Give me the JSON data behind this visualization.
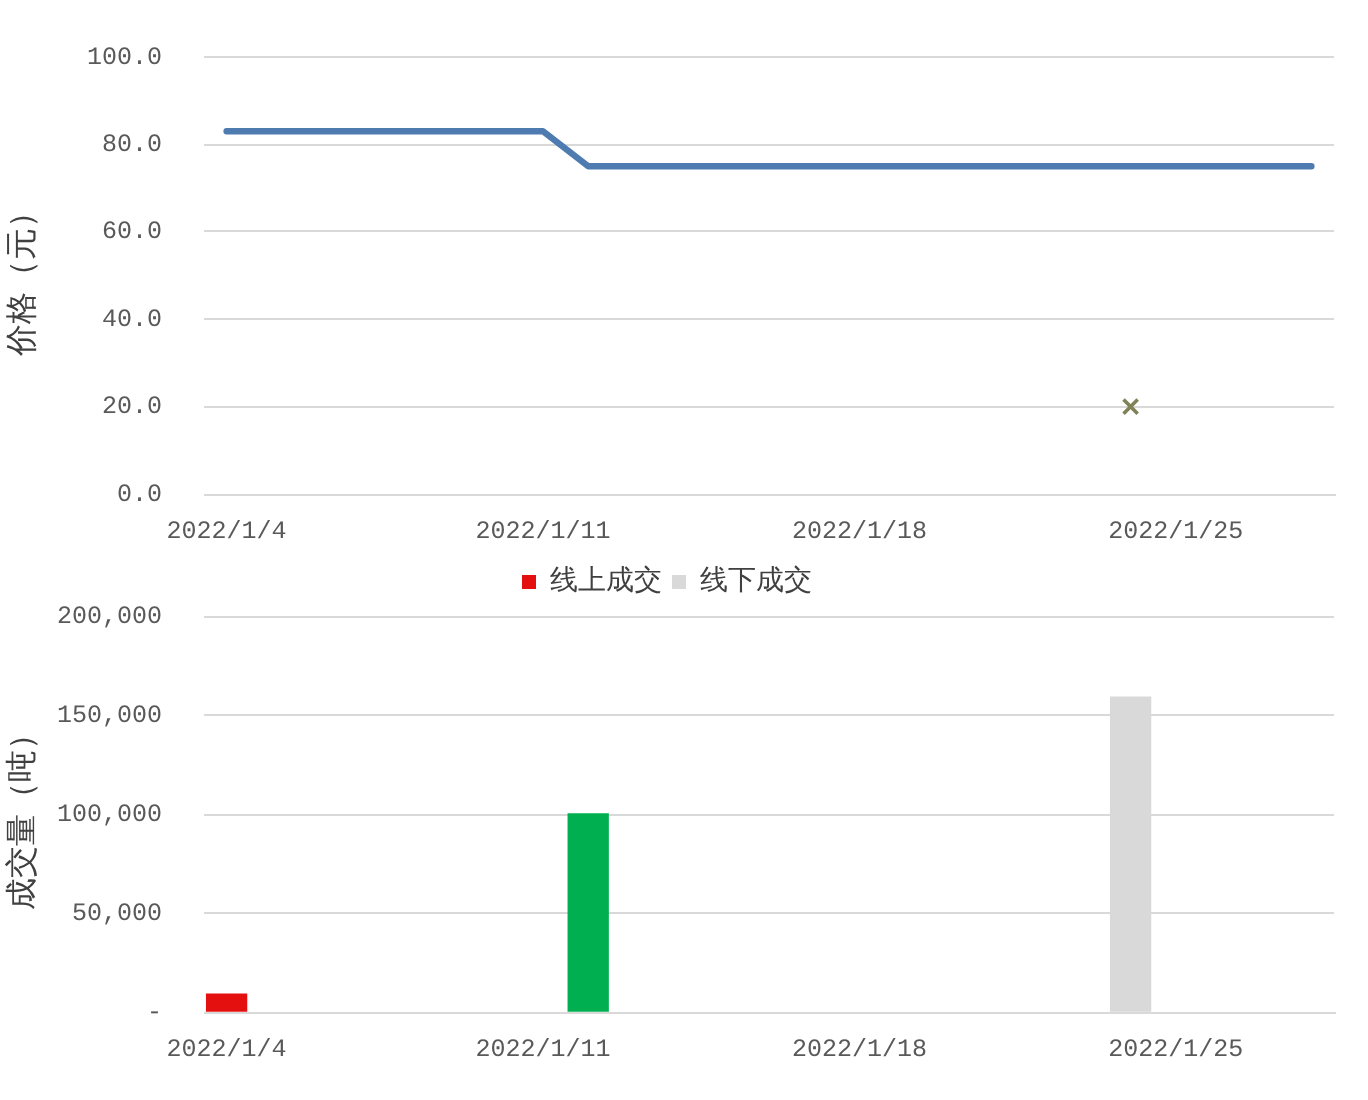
{
  "chart_data": [
    {
      "type": "line",
      "ylabel": "价格（元）",
      "series": [
        {
          "type": "line",
          "color": "#4e7bb0",
          "marker": "none",
          "x": [
            "2022-01-04",
            "2022-01-11",
            "2022-01-12",
            "2022-01-28"
          ],
          "values": [
            83,
            83,
            75,
            75
          ]
        },
        {
          "type": "scatter",
          "color": "#818158",
          "marker": "cross",
          "x": [
            "2022-01-24"
          ],
          "values": [
            20
          ]
        }
      ],
      "xlim": [
        "2022-01-03T12:00",
        "2022-01-28T12:00"
      ],
      "xticks": [
        {
          "value": "2022-01-04",
          "label": "2022/1/4"
        },
        {
          "value": "2022-01-11",
          "label": "2022/1/11"
        },
        {
          "value": "2022-01-18",
          "label": "2022/1/18"
        },
        {
          "value": "2022-01-25",
          "label": "2022/1/25"
        }
      ],
      "ylim": [
        0,
        100
      ],
      "yticks": [
        {
          "value": 0,
          "label": "0.0"
        },
        {
          "value": 20,
          "label": "20.0"
        },
        {
          "value": 40,
          "label": "40.0"
        },
        {
          "value": 60,
          "label": "60.0"
        },
        {
          "value": 80,
          "label": "80.0"
        },
        {
          "value": 100,
          "label": "100.0"
        }
      ],
      "grid": "y"
    },
    {
      "type": "bar",
      "ylabel": "成交量（吨）",
      "series": [
        {
          "name": "线上成交",
          "color": "#e41010",
          "x": [
            "2022-01-04"
          ],
          "values": [
            9000
          ]
        },
        {
          "color": "#00b050",
          "x": [
            "2022-01-12"
          ],
          "values": [
            100000
          ]
        },
        {
          "name": "线下成交",
          "color": "#d9d9d9",
          "x": [
            "2022-01-24"
          ],
          "values": [
            159000
          ]
        }
      ],
      "xlim": [
        "2022-01-03T12:00",
        "2022-01-28T12:00"
      ],
      "xticks": [
        {
          "value": "2022-01-04",
          "label": "2022/1/4"
        },
        {
          "value": "2022-01-11",
          "label": "2022/1/11"
        },
        {
          "value": "2022-01-18",
          "label": "2022/1/18"
        },
        {
          "value": "2022-01-25",
          "label": "2022/1/25"
        }
      ],
      "ylim": [
        0,
        200000
      ],
      "yticks": [
        {
          "value": 0,
          "label": "-"
        },
        {
          "value": 50000,
          "label": "50,000"
        },
        {
          "value": 100000,
          "label": "100,000"
        },
        {
          "value": 150000,
          "label": "150,000"
        },
        {
          "value": 200000,
          "label": "200,000"
        }
      ],
      "grid": "y",
      "legend": "top"
    }
  ]
}
